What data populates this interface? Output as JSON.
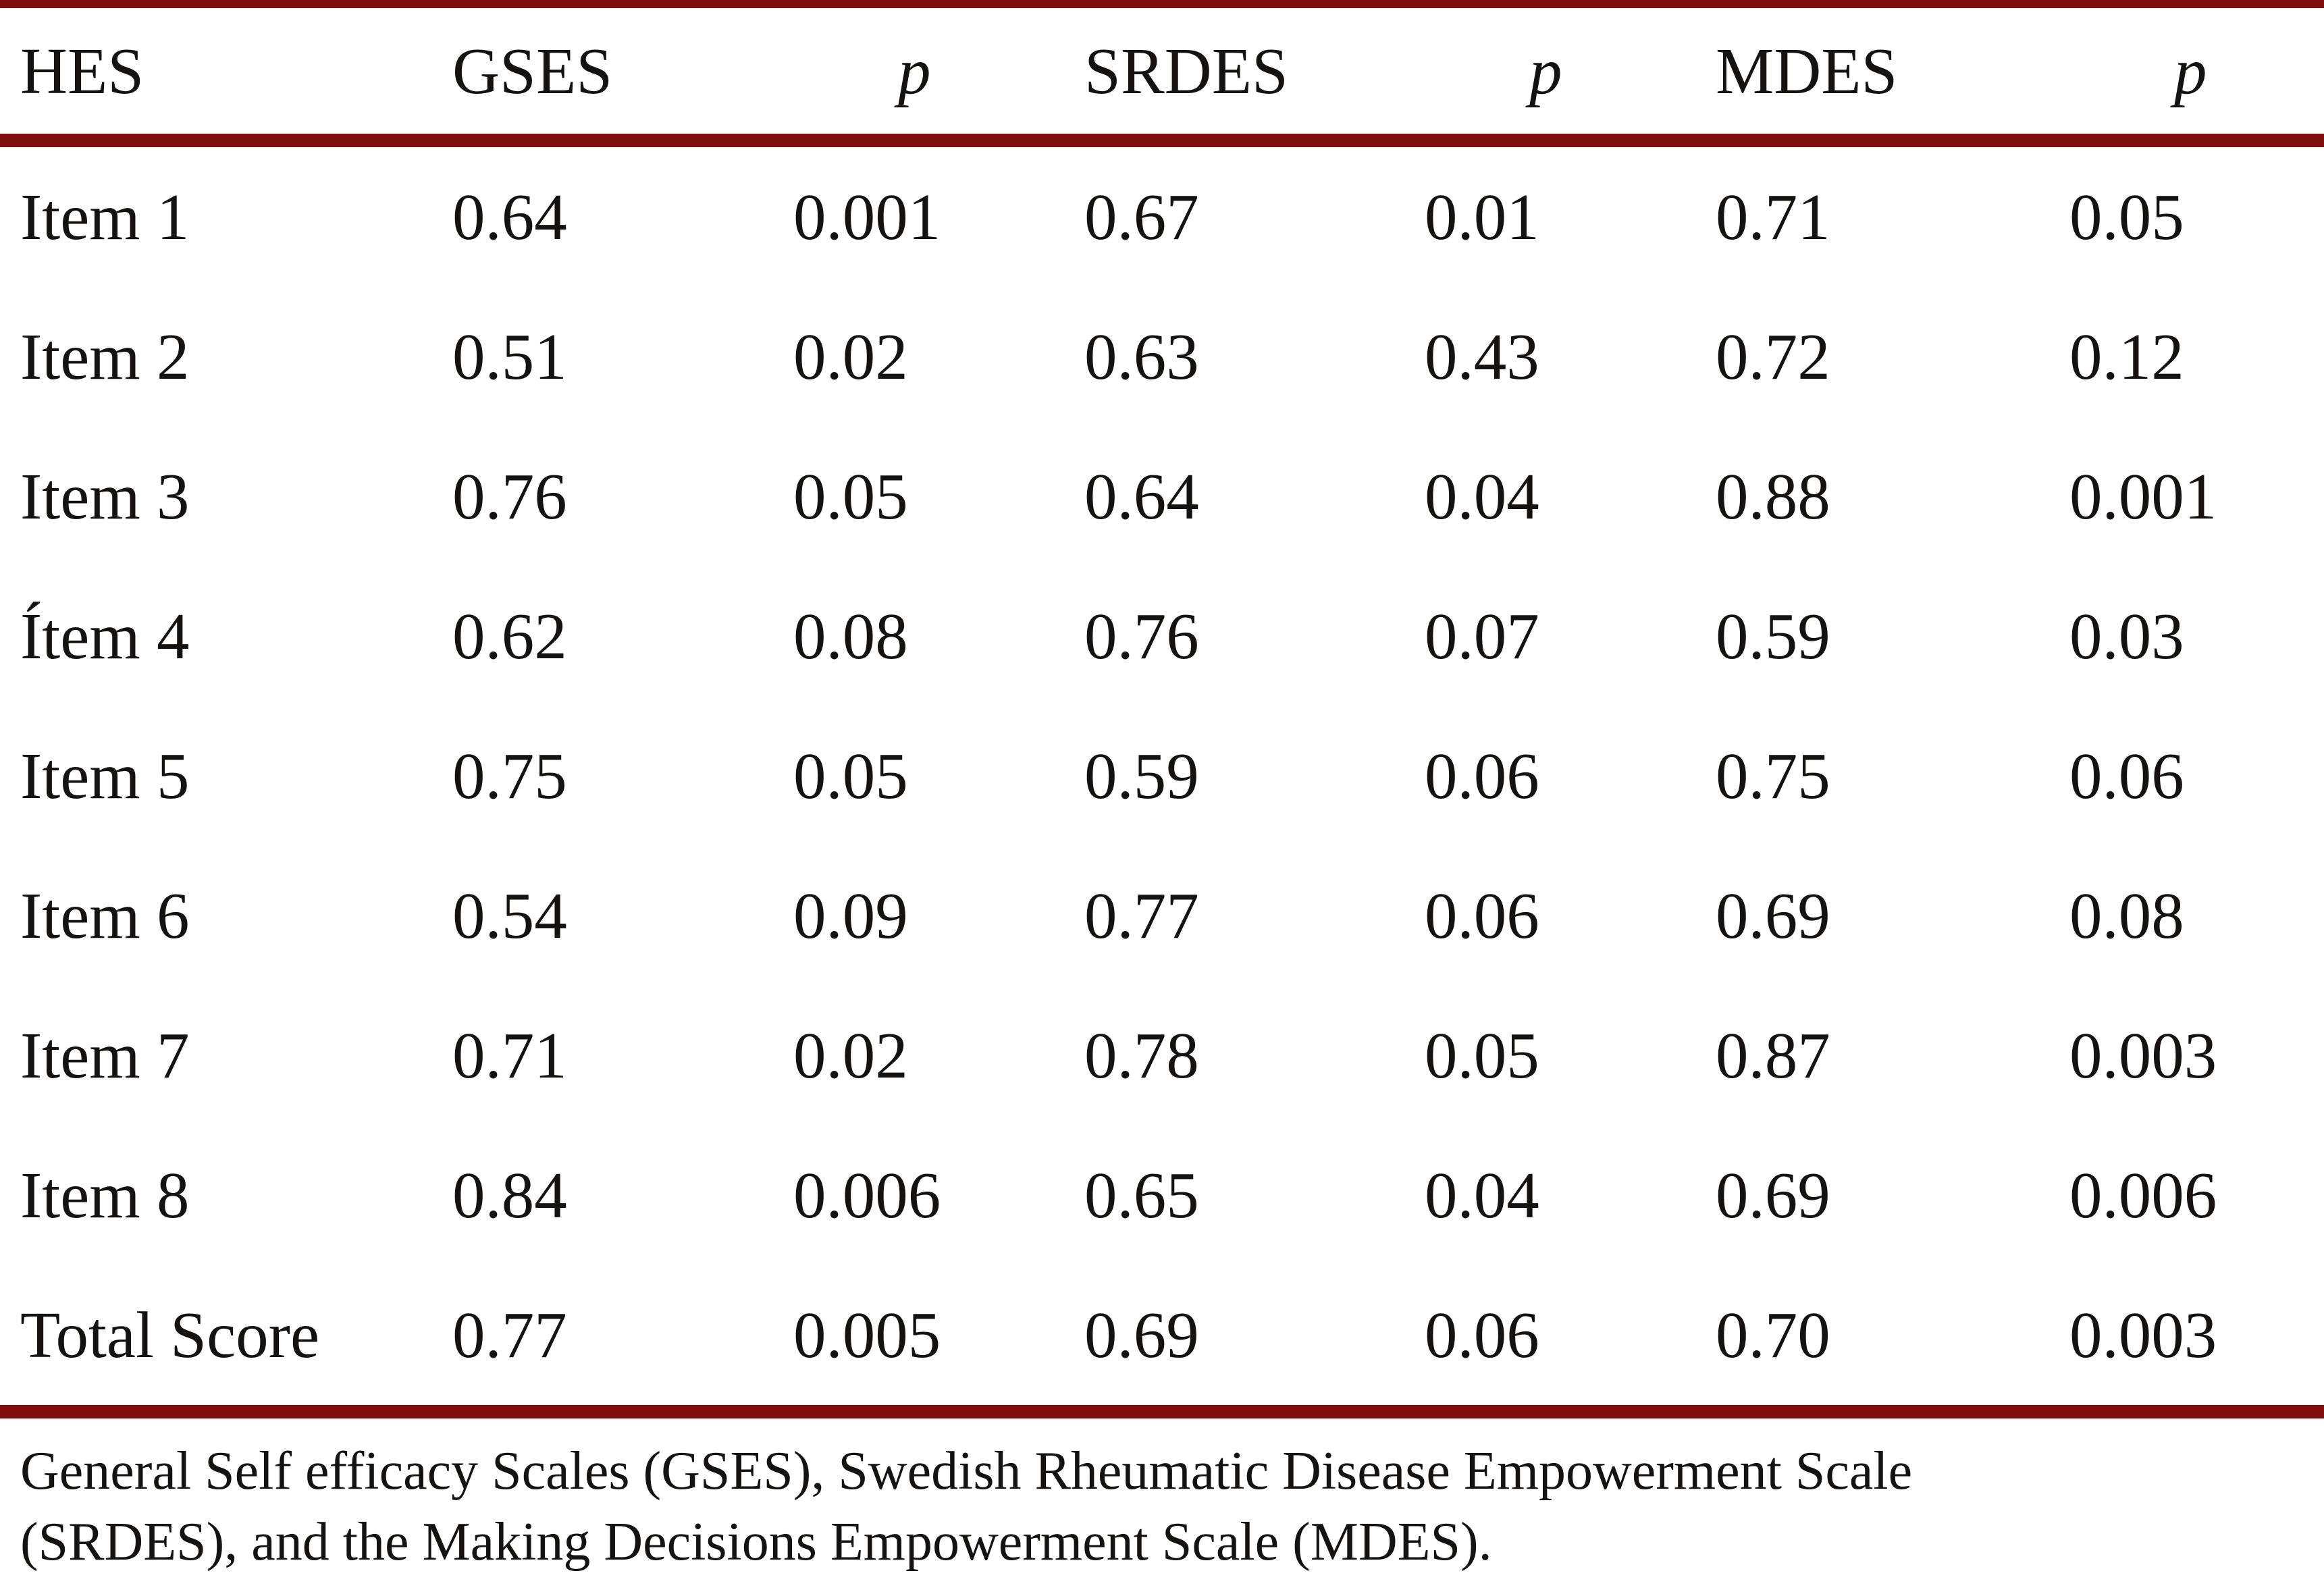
{
  "theme": {
    "rule_color": "#820d0d",
    "text_color": "#151210",
    "background_color": "#ffffff"
  },
  "table": {
    "columns": [
      "HES",
      "GSES",
      "p",
      "SRDES",
      "p",
      "MDES",
      "p"
    ],
    "rows": [
      {
        "cells": [
          "Item 1",
          "0.64",
          "0.001",
          "0.67",
          "0.01",
          "0.71",
          "0.05"
        ]
      },
      {
        "cells": [
          "Item 2",
          "0.51",
          "0.02",
          "0.63",
          "0.43",
          "0.72",
          "0.12"
        ]
      },
      {
        "cells": [
          "Item 3",
          "0.76",
          "0.05",
          "0.64",
          "0.04",
          "0.88",
          "0.001"
        ]
      },
      {
        "cells": [
          "Ítem 4",
          "0.62",
          "0.08",
          "0.76",
          "0.07",
          "0.59",
          "0.03"
        ]
      },
      {
        "cells": [
          "Item 5",
          "0.75",
          "0.05",
          "0.59",
          "0.06",
          "0.75",
          "0.06"
        ]
      },
      {
        "cells": [
          "Item 6",
          "0.54",
          "0.09",
          "0.77",
          "0.06",
          "0.69",
          "0.08"
        ]
      },
      {
        "cells": [
          "Item 7",
          "0.71",
          "0.02",
          "0.78",
          "0.05",
          "0.87",
          "0.003"
        ]
      },
      {
        "cells": [
          "Item 8",
          "0.84",
          "0.006",
          "0.65",
          "0.04",
          "0.69",
          "0.006"
        ]
      },
      {
        "cells": [
          "Total Score",
          "0.77",
          "0.005",
          "0.69",
          "0.06",
          "0.70",
          "0.003"
        ]
      }
    ],
    "footnote": [
      "General Self efficacy Scales (GSES), Swedish Rheumatic Disease Empowerment Scale",
      "(SRDES), and the Making Decisions Empowerment Scale (MDES)."
    ]
  }
}
